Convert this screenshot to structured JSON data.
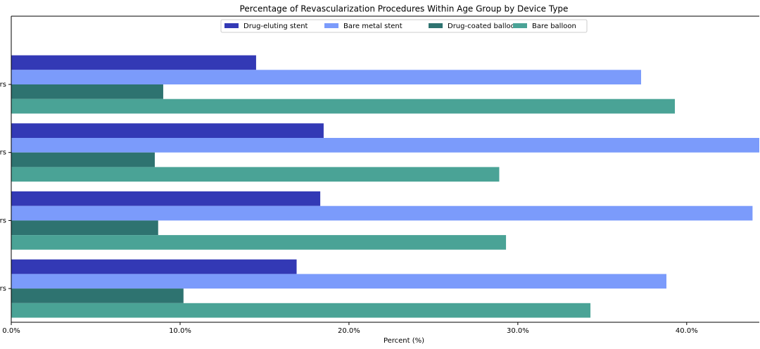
{
  "chart_data": {
    "type": "barh",
    "title": "Percentage of Revascularization Procedures Within Age Group by Device Type",
    "x_label": "Percent (%)",
    "categories": [
      "rs",
      "rs",
      "rs",
      "rs"
    ],
    "series": [
      {
        "name": "Drug-eluting stent",
        "color": "#3339b5",
        "values": [
          14.5,
          18.5,
          18.3,
          16.9
        ]
      },
      {
        "name": "Bare metal stent",
        "color": "#7b9bfb",
        "values": [
          37.3,
          44.3,
          43.9,
          38.8
        ]
      },
      {
        "name": "Drug-coated balloon",
        "color": "#2e7370",
        "values": [
          9.0,
          8.5,
          8.7,
          10.2
        ]
      },
      {
        "name": "Bare balloon",
        "color": "#4aa396",
        "values": [
          39.3,
          28.9,
          29.3,
          34.3
        ]
      }
    ],
    "xlim": [
      0,
      44.3
    ],
    "xticks": [
      {
        "value": 0,
        "label": "0.0%"
      },
      {
        "value": 10,
        "label": "10.0%"
      },
      {
        "value": 20,
        "label": "20.0%"
      },
      {
        "value": 30,
        "label": "30.0%"
      },
      {
        "value": 40,
        "label": "40.0%"
      }
    ],
    "legend": "top"
  }
}
